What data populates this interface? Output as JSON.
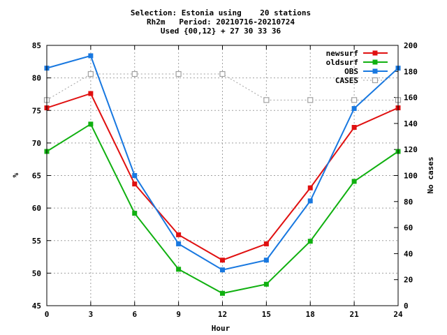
{
  "title_lines": [
    "Selection: Estonia using    20 stations",
    "Rh2m   Period: 20210716-20210724",
    "Used {00,12} + 27 30 33 36"
  ],
  "chart_data": {
    "type": "line",
    "xlabel": "Hour",
    "ylabel": "%",
    "y2label": "No cases",
    "xlim": [
      0,
      24
    ],
    "ylim": [
      45,
      85
    ],
    "y2lim": [
      0,
      200
    ],
    "xticks": [
      0,
      3,
      6,
      9,
      12,
      15,
      18,
      21,
      24
    ],
    "yticks": [
      45,
      50,
      55,
      60,
      65,
      70,
      75,
      80,
      85
    ],
    "y2ticks": [
      0,
      20,
      40,
      60,
      80,
      100,
      120,
      140,
      160,
      180,
      200
    ],
    "grid": true,
    "legend_position": "top-right",
    "x": [
      0,
      3,
      6,
      9,
      12,
      15,
      18,
      21,
      24
    ],
    "series": [
      {
        "name": "newsurf",
        "axis": "left",
        "color": "#e01010",
        "marker": "filled-square",
        "values": [
          75.4,
          77.6,
          63.7,
          55.9,
          52.0,
          54.5,
          63.1,
          72.4,
          75.4
        ]
      },
      {
        "name": "oldsurf",
        "axis": "left",
        "color": "#10b010",
        "marker": "filled-square",
        "values": [
          68.7,
          72.9,
          59.2,
          50.6,
          46.9,
          48.3,
          54.9,
          64.1,
          68.7
        ]
      },
      {
        "name": "OBS",
        "axis": "left",
        "color": "#1878e0",
        "marker": "filled-square",
        "values": [
          81.5,
          83.4,
          65.0,
          54.5,
          50.5,
          52.0,
          61.1,
          75.3,
          81.5
        ]
      },
      {
        "name": "CASES",
        "axis": "right",
        "color": "#a0a0a0",
        "marker": "open-square",
        "dashed": true,
        "values": [
          158,
          178,
          178,
          178,
          178,
          158,
          158,
          158,
          158
        ]
      }
    ]
  }
}
